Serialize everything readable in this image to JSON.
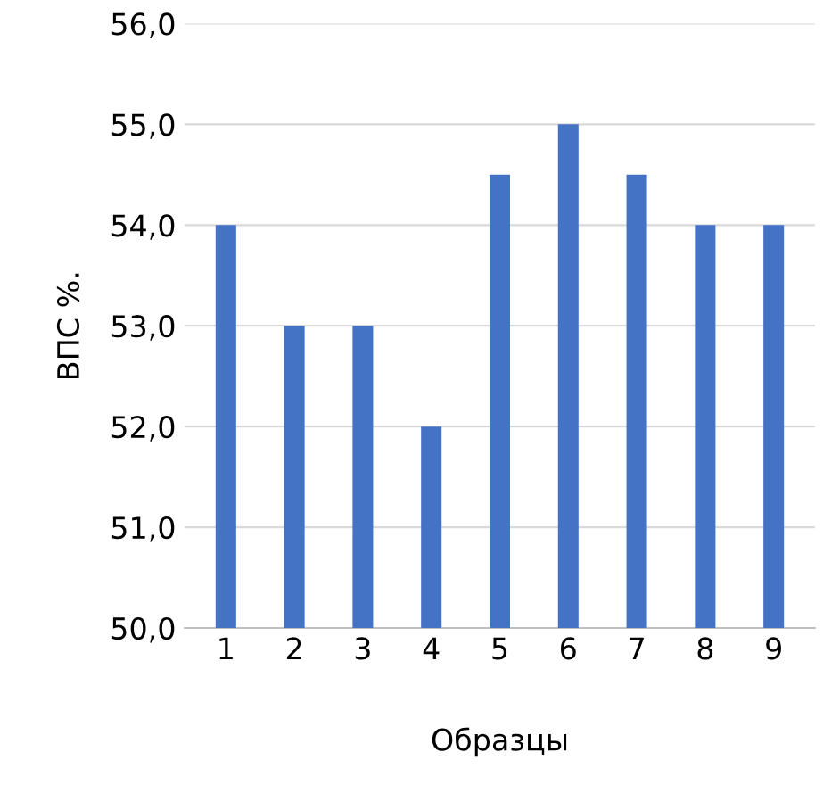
{
  "chart_data": {
    "type": "bar",
    "xlabel": "Образцы",
    "ylabel": "ВПС %.",
    "categories": [
      "1",
      "2",
      "3",
      "4",
      "5",
      "6",
      "7",
      "8",
      "9"
    ],
    "values": [
      54,
      53,
      53,
      52,
      54.5,
      55,
      54.5,
      54,
      54
    ],
    "color": "#4472c4",
    "ylim": [
      50,
      56
    ],
    "yticks": [
      {
        "value": 50,
        "label": "50,0"
      },
      {
        "value": 51,
        "label": "51,0"
      },
      {
        "value": 52,
        "label": "52,0"
      },
      {
        "value": 53,
        "label": "53,0"
      },
      {
        "value": 54,
        "label": "54,0"
      },
      {
        "value": 55,
        "label": "55,0"
      },
      {
        "value": 56,
        "label": "56,0"
      }
    ],
    "grid": "y"
  }
}
